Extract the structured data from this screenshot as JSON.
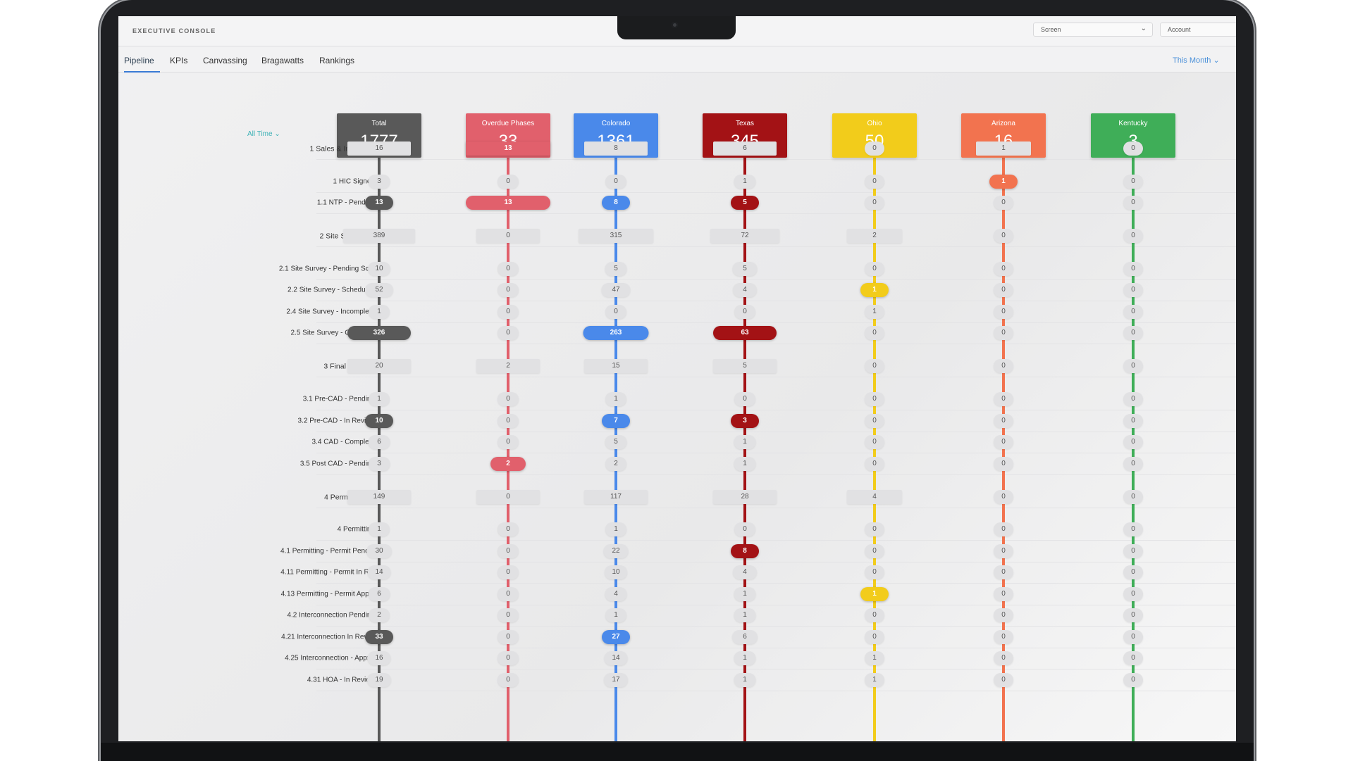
{
  "app": {
    "title": "EXECUTIVE CONSOLE",
    "screen_select": "Screen",
    "account_select": "Account"
  },
  "tabs": [
    "Pipeline",
    "KPIs",
    "Canvassing",
    "Bragawatts",
    "Rankings"
  ],
  "active_tab": "Pipeline",
  "period": "This Month",
  "time_filter": "All Time",
  "columns": [
    {
      "label": "Total",
      "count": "1777",
      "color": "#595959"
    },
    {
      "label": "Overdue Phases",
      "count": "33",
      "color": "#e1606c"
    },
    {
      "label": "Colorado",
      "count": "1361",
      "color": "#4a89ea"
    },
    {
      "label": "Texas",
      "count": "345",
      "color": "#a31215"
    },
    {
      "label": "Ohio",
      "count": "50",
      "color": "#f2cc1b"
    },
    {
      "label": "Arizona",
      "count": "16",
      "color": "#f2734f"
    },
    {
      "label": "Kentucky",
      "count": "3",
      "color": "#3fae58"
    }
  ],
  "rows": [
    {
      "label": "1 Sales & Intake",
      "group": true,
      "values": [
        "16",
        "13",
        "8",
        "6",
        "0",
        "1",
        "0"
      ],
      "hl": [
        false,
        true,
        false,
        false,
        false,
        false,
        false
      ]
    },
    {
      "label": "1 HIC Signed",
      "group": false,
      "values": [
        "3",
        "0",
        "0",
        "1",
        "0",
        "1",
        "0"
      ],
      "hl": [
        false,
        false,
        false,
        false,
        false,
        true,
        false
      ]
    },
    {
      "label": "1.1 NTP - Pending",
      "group": false,
      "values": [
        "13",
        "13",
        "8",
        "5",
        "0",
        "0",
        "0"
      ],
      "hl": [
        true,
        true,
        true,
        true,
        false,
        false,
        false
      ]
    },
    {
      "label": "2 Site Survey",
      "group": true,
      "values": [
        "389",
        "0",
        "315",
        "72",
        "2",
        "0",
        "0"
      ],
      "hl": [
        false,
        false,
        false,
        false,
        false,
        false,
        false
      ]
    },
    {
      "label": "2.1 Site Survey - Pending Sc...",
      "group": false,
      "values": [
        "10",
        "0",
        "5",
        "5",
        "0",
        "0",
        "0"
      ],
      "hl": [
        false,
        false,
        false,
        false,
        false,
        false,
        false
      ]
    },
    {
      "label": "2.2 Site Survey - Scheduled",
      "group": false,
      "values": [
        "52",
        "0",
        "47",
        "4",
        "1",
        "0",
        "0"
      ],
      "hl": [
        false,
        false,
        false,
        false,
        true,
        false,
        false
      ]
    },
    {
      "label": "2.4 Site Survey - Incomplete",
      "group": false,
      "values": [
        "1",
        "0",
        "0",
        "0",
        "1",
        "0",
        "0"
      ],
      "hl": [
        false,
        false,
        false,
        false,
        false,
        false,
        false
      ]
    },
    {
      "label": "2.5 Site Survey - Complete",
      "group": false,
      "values": [
        "326",
        "0",
        "263",
        "63",
        "0",
        "0",
        "0"
      ],
      "hl": [
        true,
        false,
        true,
        true,
        false,
        false,
        false
      ]
    },
    {
      "label": "3 Final CAD",
      "group": true,
      "values": [
        "20",
        "2",
        "15",
        "5",
        "0",
        "0",
        "0"
      ],
      "hl": [
        false,
        false,
        false,
        false,
        false,
        false,
        false
      ]
    },
    {
      "label": "3.1 Pre-CAD - Pending",
      "group": false,
      "values": [
        "1",
        "0",
        "1",
        "0",
        "0",
        "0",
        "0"
      ],
      "hl": [
        false,
        false,
        false,
        false,
        false,
        false,
        false
      ]
    },
    {
      "label": "3.2 Pre-CAD - In Review",
      "group": false,
      "values": [
        "10",
        "0",
        "7",
        "3",
        "0",
        "0",
        "0"
      ],
      "hl": [
        true,
        false,
        true,
        true,
        false,
        false,
        false
      ]
    },
    {
      "label": "3.4 CAD - Complete",
      "group": false,
      "values": [
        "6",
        "0",
        "5",
        "1",
        "0",
        "0",
        "0"
      ],
      "hl": [
        false,
        false,
        false,
        false,
        false,
        false,
        false
      ]
    },
    {
      "label": "3.5 Post CAD - Pending",
      "group": false,
      "values": [
        "3",
        "2",
        "2",
        "1",
        "0",
        "0",
        "0"
      ],
      "hl": [
        false,
        true,
        false,
        false,
        false,
        false,
        false
      ]
    },
    {
      "label": "4 Permitting",
      "group": true,
      "values": [
        "149",
        "0",
        "117",
        "28",
        "4",
        "0",
        "0"
      ],
      "hl": [
        false,
        false,
        false,
        false,
        false,
        false,
        false
      ]
    },
    {
      "label": "4 Permitting",
      "group": false,
      "values": [
        "1",
        "0",
        "1",
        "0",
        "0",
        "0",
        "0"
      ],
      "hl": [
        false,
        false,
        false,
        false,
        false,
        false,
        false
      ]
    },
    {
      "label": "4.1 Permitting - Permit Pend...",
      "group": false,
      "values": [
        "30",
        "0",
        "22",
        "8",
        "0",
        "0",
        "0"
      ],
      "hl": [
        false,
        false,
        false,
        true,
        false,
        false,
        false
      ]
    },
    {
      "label": "4.11 Permitting - Permit In R...",
      "group": false,
      "values": [
        "14",
        "0",
        "10",
        "4",
        "0",
        "0",
        "0"
      ],
      "hl": [
        false,
        false,
        false,
        false,
        false,
        false,
        false
      ]
    },
    {
      "label": "4.13 Permitting - Permit App...",
      "group": false,
      "values": [
        "6",
        "0",
        "4",
        "1",
        "1",
        "0",
        "0"
      ],
      "hl": [
        false,
        false,
        false,
        false,
        true,
        false,
        false
      ]
    },
    {
      "label": "4.2 Interconnection Pending",
      "group": false,
      "values": [
        "2",
        "0",
        "1",
        "1",
        "0",
        "0",
        "0"
      ],
      "hl": [
        false,
        false,
        false,
        false,
        false,
        false,
        false
      ]
    },
    {
      "label": "4.21 Interconnection In Revi...",
      "group": false,
      "values": [
        "33",
        "0",
        "27",
        "6",
        "0",
        "0",
        "0"
      ],
      "hl": [
        true,
        false,
        true,
        false,
        false,
        false,
        false
      ]
    },
    {
      "label": "4.25 Interconnection - Appr...",
      "group": false,
      "values": [
        "16",
        "0",
        "14",
        "1",
        "1",
        "0",
        "0"
      ],
      "hl": [
        false,
        false,
        false,
        false,
        false,
        false,
        false
      ]
    },
    {
      "label": "4.31 HOA - In Review",
      "group": false,
      "values": [
        "19",
        "0",
        "17",
        "1",
        "1",
        "0",
        "0"
      ],
      "hl": [
        false,
        false,
        false,
        false,
        false,
        false,
        false
      ]
    }
  ]
}
